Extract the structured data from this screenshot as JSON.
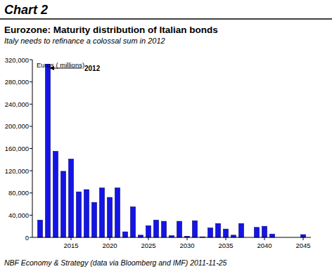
{
  "chart_data": {
    "type": "bar",
    "heading": "Chart 2",
    "title": "Eurozone: Maturity distribution of Italian bonds",
    "subtitle": "Italy needs to refinance a colossal sum in 2012",
    "y_label": "Euros ( millions)",
    "annotation": "2012",
    "source": "NBF Economy & Strategy (data via Bloomberg and IMF) 2011-11-25",
    "x": [
      2011,
      2012,
      2013,
      2014,
      2015,
      2016,
      2017,
      2018,
      2019,
      2020,
      2021,
      2022,
      2023,
      2024,
      2025,
      2026,
      2027,
      2028,
      2029,
      2030,
      2031,
      2032,
      2033,
      2034,
      2035,
      2036,
      2037,
      2038,
      2039,
      2040,
      2041,
      2042,
      2043,
      2044,
      2045
    ],
    "values": [
      31000,
      312000,
      155000,
      119000,
      141000,
      82000,
      86000,
      63000,
      89000,
      72000,
      89000,
      10000,
      55000,
      4000,
      21000,
      31000,
      29000,
      3000,
      29000,
      2000,
      30000,
      1000,
      17000,
      25000,
      15000,
      4000,
      25000,
      0,
      18000,
      20000,
      6000,
      0,
      0,
      0,
      5000
    ],
    "color": "#1414e6",
    "xlim": [
      2010,
      2046
    ],
    "xticks": [
      2015,
      2020,
      2025,
      2030,
      2035,
      2040,
      2045
    ],
    "ylim": [
      0,
      320000
    ],
    "yticks": [
      0,
      {
        "value": 40000,
        "label": "40,000"
      },
      {
        "value": 80000,
        "label": "80,000"
      },
      {
        "value": 120000,
        "label": "120,000"
      },
      {
        "value": 160000,
        "label": "160,000"
      },
      {
        "value": 200000,
        "label": "200,000"
      },
      {
        "value": 240000,
        "label": "240,000"
      },
      {
        "value": 280000,
        "label": "280,000"
      },
      {
        "value": 320000,
        "label": "320,000"
      }
    ],
    "grid": false
  }
}
